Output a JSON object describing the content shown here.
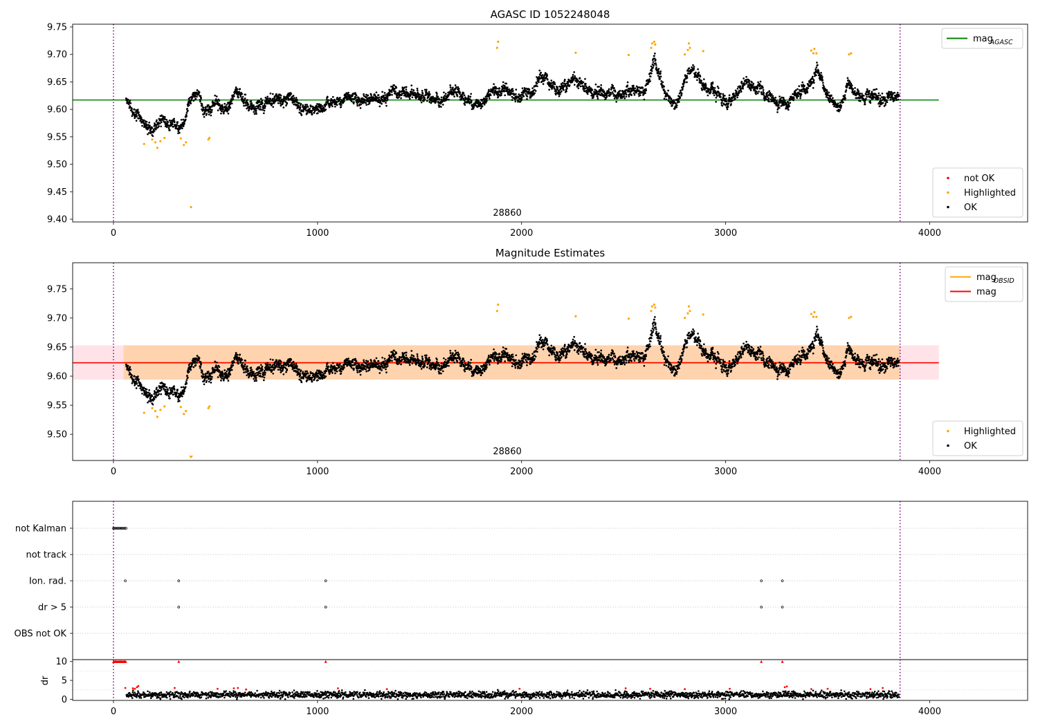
{
  "chart_data": [
    {
      "type": "scatter",
      "title": "AGASC ID 1052248048",
      "xlim": [
        -200,
        4480
      ],
      "ylim": [
        9.395,
        9.755
      ],
      "xticks": [
        0,
        1000,
        2000,
        3000,
        4000
      ],
      "yticks": [
        9.4,
        9.45,
        9.5,
        9.55,
        9.6,
        9.65,
        9.7,
        9.75
      ],
      "yticklabels": [
        "9.40",
        "9.45",
        "9.50",
        "9.55",
        "9.60",
        "9.65",
        "9.70",
        "9.75"
      ],
      "obsid_label": {
        "text": "28860",
        "x": 1930
      },
      "obs_boundaries": [
        0,
        3855
      ],
      "hlines": [
        {
          "name": "mag_AGASC",
          "y": 9.617,
          "x": [
            -200,
            4045
          ],
          "color": "#008000"
        }
      ],
      "series": [
        {
          "name": "not OK",
          "color": "#ff0000",
          "points": []
        },
        {
          "name": "Highlighted",
          "color": "#ffa500",
          "points": [
            [
              150,
              9.537
            ],
            [
              190,
              9.545
            ],
            [
              205,
              9.54
            ],
            [
              215,
              9.53
            ],
            [
              230,
              9.542
            ],
            [
              250,
              9.548
            ],
            [
              330,
              9.547
            ],
            [
              345,
              9.535
            ],
            [
              355,
              9.54
            ],
            [
              380,
              9.422
            ],
            [
              465,
              9.545
            ],
            [
              470,
              9.548
            ],
            [
              1880,
              9.712
            ],
            [
              1885,
              9.723
            ],
            [
              2265,
              9.703
            ],
            [
              2525,
              9.699
            ],
            [
              2635,
              9.712
            ],
            [
              2640,
              9.72
            ],
            [
              2650,
              9.723
            ],
            [
              2655,
              9.718
            ],
            [
              2800,
              9.7
            ],
            [
              2815,
              9.708
            ],
            [
              2820,
              9.72
            ],
            [
              2825,
              9.712
            ],
            [
              2890,
              9.706
            ],
            [
              3420,
              9.707
            ],
            [
              3430,
              9.702
            ],
            [
              3435,
              9.71
            ],
            [
              3445,
              9.702
            ],
            [
              3605,
              9.7
            ],
            [
              3615,
              9.702
            ]
          ]
        },
        {
          "name": "OK",
          "color": "#000000",
          "points": []
        }
      ],
      "legends": [
        {
          "position": "upper right",
          "entries": [
            {
              "label": "mag",
              "sub": "AGASC",
              "kind": "line",
              "color": "#008000"
            }
          ]
        },
        {
          "position": "lower right",
          "entries": [
            {
              "label": "not OK",
              "kind": "dot",
              "color": "#ff0000"
            },
            {
              "label": "Highlighted",
              "kind": "dot",
              "color": "#ffa500"
            },
            {
              "label": "OK",
              "kind": "dot",
              "color": "#000000"
            }
          ]
        }
      ]
    },
    {
      "type": "scatter",
      "title": "Magnitude Estimates",
      "xlim": [
        -200,
        4480
      ],
      "ylim": [
        9.455,
        9.795
      ],
      "xticks": [
        0,
        1000,
        2000,
        3000,
        4000
      ],
      "yticks": [
        9.5,
        9.55,
        9.6,
        9.65,
        9.7,
        9.75
      ],
      "yticklabels": [
        "9.50",
        "9.55",
        "9.60",
        "9.65",
        "9.70",
        "9.75"
      ],
      "obsid_label": {
        "text": "28860",
        "x": 1930
      },
      "obs_boundaries": [
        0,
        3855
      ],
      "bands": [
        {
          "y": [
            9.594,
            9.653
          ],
          "x": [
            -200,
            4045
          ],
          "color": "#ffc0cb",
          "opacity": 0.45
        },
        {
          "y": [
            9.594,
            9.653
          ],
          "x": [
            50,
            3855
          ],
          "color": "#ffa500",
          "opacity": 0.25
        }
      ],
      "hlines": [
        {
          "name": "mag_OBSID",
          "y": 9.6235,
          "x": [
            50,
            3855
          ],
          "color": "#ffa500"
        },
        {
          "name": "mag",
          "y": 9.623,
          "x": [
            -200,
            4045
          ],
          "color": "#ff0000"
        }
      ],
      "series": [
        {
          "name": "Highlighted",
          "color": "#ffa500",
          "points": [
            [
              150,
              9.537
            ],
            [
              190,
              9.545
            ],
            [
              205,
              9.54
            ],
            [
              215,
              9.53
            ],
            [
              230,
              9.542
            ],
            [
              250,
              9.548
            ],
            [
              330,
              9.547
            ],
            [
              345,
              9.535
            ],
            [
              355,
              9.54
            ],
            [
              465,
              9.545
            ],
            [
              470,
              9.548
            ],
            [
              1880,
              9.712
            ],
            [
              1885,
              9.723
            ],
            [
              2265,
              9.703
            ],
            [
              2525,
              9.699
            ],
            [
              2635,
              9.712
            ],
            [
              2640,
              9.72
            ],
            [
              2650,
              9.723
            ],
            [
              2655,
              9.718
            ],
            [
              2800,
              9.7
            ],
            [
              2815,
              9.708
            ],
            [
              2820,
              9.72
            ],
            [
              2825,
              9.712
            ],
            [
              2890,
              9.706
            ],
            [
              3420,
              9.707
            ],
            [
              3430,
              9.702
            ],
            [
              3435,
              9.71
            ],
            [
              3445,
              9.702
            ],
            [
              3605,
              9.7
            ],
            [
              3615,
              9.702
            ]
          ]
        },
        {
          "name": "OK",
          "color": "#000000",
          "points": []
        }
      ],
      "offscale_markers": [
        {
          "x": 380,
          "y": 9.458,
          "color": "#ffa500"
        }
      ],
      "legends": [
        {
          "position": "upper right",
          "entries": [
            {
              "label": "mag",
              "sub": "OBSID",
              "kind": "line",
              "color": "#ffa500"
            },
            {
              "label": "mag",
              "kind": "line",
              "color": "#ff0000"
            }
          ]
        },
        {
          "position": "lower right",
          "entries": [
            {
              "label": "Highlighted",
              "kind": "dot",
              "color": "#ffa500"
            },
            {
              "label": "OK",
              "kind": "dot",
              "color": "#000000"
            }
          ]
        }
      ]
    },
    {
      "type": "scatter",
      "title": "",
      "xlim": [
        -200,
        4480
      ],
      "obs_boundaries": [
        0,
        3855
      ],
      "flag_rows": [
        {
          "label": "not Kalman",
          "points": [
            0,
            4,
            8,
            12,
            16,
            20,
            24,
            28,
            32,
            36,
            40,
            44,
            48,
            52,
            56,
            60,
            62
          ]
        },
        {
          "label": "not track",
          "points": []
        },
        {
          "label": "Ion. rad.",
          "points": [
            58,
            320,
            1040,
            3175,
            3278
          ]
        },
        {
          "label": "dr > 5",
          "points": [
            320,
            1040,
            3175,
            3278
          ]
        },
        {
          "label": "OBS not OK",
          "points": []
        }
      ]
    },
    {
      "type": "scatter",
      "title": "",
      "xlim": [
        -200,
        4480
      ],
      "ylim": [
        -0.3,
        10.5
      ],
      "xticks": [
        0,
        1000,
        2000,
        3000,
        4000
      ],
      "yticks": [
        0,
        5,
        10
      ],
      "yticklabels": [
        "0",
        "5",
        "10"
      ],
      "ylabel": "dr",
      "obs_boundaries": [
        0,
        3855
      ],
      "outliers": {
        "value": 10,
        "x": [
          0,
          4,
          8,
          12,
          16,
          20,
          24,
          28,
          32,
          36,
          40,
          44,
          48,
          52,
          56,
          60,
          320,
          1040,
          3175,
          3278
        ],
        "color": "#ff0000"
      },
      "red_points": [
        [
          58,
          3.0
        ],
        [
          95,
          2.9
        ],
        [
          105,
          2.8
        ],
        [
          115,
          3.2
        ],
        [
          122,
          3.5
        ],
        [
          300,
          3.0
        ],
        [
          510,
          2.8
        ],
        [
          590,
          2.9
        ],
        [
          610,
          3.0
        ],
        [
          650,
          2.6
        ],
        [
          1100,
          2.9
        ],
        [
          1340,
          2.7
        ],
        [
          1990,
          2.8
        ],
        [
          2510,
          2.9
        ],
        [
          2630,
          2.8
        ],
        [
          2800,
          2.7
        ],
        [
          3020,
          2.8
        ],
        [
          3290,
          3.2
        ],
        [
          3300,
          3.4
        ],
        [
          3420,
          2.7
        ],
        [
          3500,
          2.8
        ],
        [
          3710,
          2.7
        ],
        [
          3770,
          3.0
        ]
      ],
      "series": [
        {
          "name": "OK",
          "color": "#000000",
          "points": []
        }
      ]
    }
  ]
}
